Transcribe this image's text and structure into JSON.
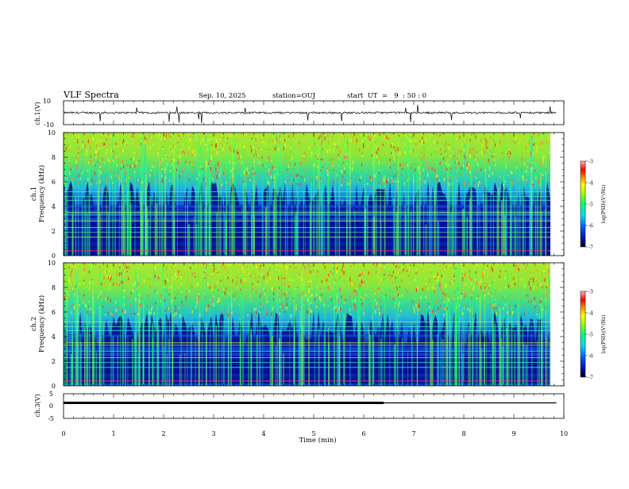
{
  "header": {
    "title": "VLF Spectra",
    "date": "Sep. 10, 2025",
    "station": "station=OUJ",
    "start": "start  UT  =   9  : 50 : 0"
  },
  "chart_data": [
    {
      "type": "line",
      "panel": "ch.1 waveform",
      "ylabel": "ch.1(V)",
      "ylim": [
        -10,
        10
      ],
      "yticks": [
        "10",
        "-10"
      ],
      "x": [
        0,
        10
      ],
      "baseline": 0
    },
    {
      "type": "heatmap",
      "panel": "ch.1 spectrogram",
      "ylabel": "ch.1\nFrequency (kHz)",
      "ylim": [
        0,
        10
      ],
      "yticks": [
        "0",
        "2",
        "4",
        "6",
        "8",
        "10"
      ],
      "colorbar": {
        "label": "log(PSD)(V²/Hz)",
        "range": [
          -7,
          -3
        ],
        "ticks": [
          "-3",
          "-4",
          "-5",
          "-6",
          "-7"
        ]
      },
      "x_end": 9.85
    },
    {
      "type": "heatmap",
      "panel": "ch.2 spectrogram",
      "ylabel": "ch.2\nFrequency (kHz)",
      "ylim": [
        0,
        10
      ],
      "yticks": [
        "0",
        "2",
        "4",
        "6",
        "8",
        "10"
      ],
      "colorbar": {
        "label": "log(PSD)(V²/Hz)",
        "range": [
          -7,
          -3
        ],
        "ticks": [
          "-3",
          "-4",
          "-5",
          "-6",
          "-7"
        ]
      },
      "x_end": 9.85
    },
    {
      "type": "line",
      "panel": "ch.3 level",
      "ylabel": "ch.3(V)",
      "ylim": [
        -5,
        5
      ],
      "yticks": [
        "5",
        "0",
        "-5"
      ],
      "series": [
        {
          "name": "thick",
          "x": [
            0,
            6.4
          ],
          "y": [
            1.3,
            1.3
          ]
        },
        {
          "name": "thin",
          "x": [
            6.4,
            9.85
          ],
          "y": [
            1.3,
            1.3
          ]
        }
      ]
    }
  ],
  "xaxis": {
    "label": "Time (min)",
    "xlim": [
      0,
      10
    ],
    "ticks": [
      "0",
      "1",
      "2",
      "3",
      "4",
      "5",
      "6",
      "7",
      "8",
      "9",
      "10"
    ]
  }
}
